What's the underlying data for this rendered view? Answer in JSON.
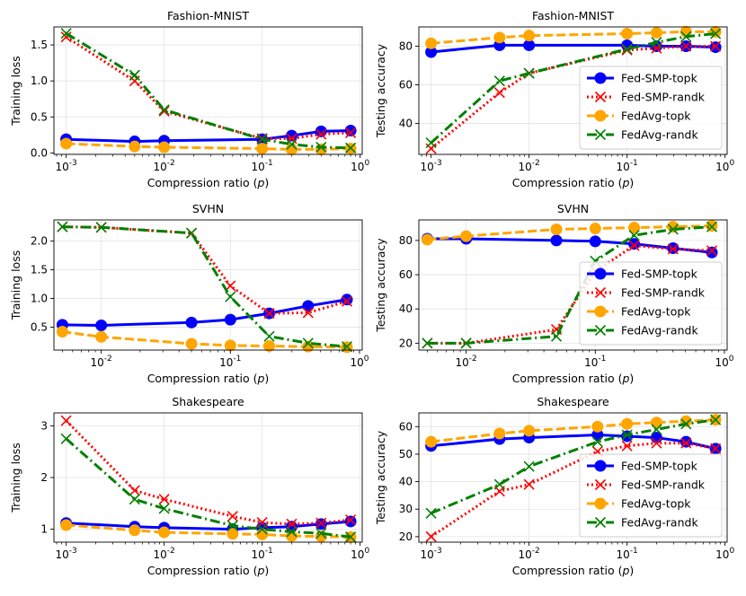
{
  "colors": {
    "fed_smp_topk": "#0000ff",
    "fed_smp_randk": "#ff0000",
    "fedavg_topk": "#ffa500",
    "fedavg_randk": "#008000"
  },
  "legend_labels": [
    "Fed-SMP-topk",
    "Fed-SMP-randk",
    "FedAvg-topk",
    "FedAvg-randk"
  ],
  "chart_data": [
    {
      "id": "fmnist-loss",
      "type": "line",
      "title": "Fashion-MNIST",
      "xlabel": "Compression ratio (p)",
      "ylabel": "Training loss",
      "xscale": "log",
      "xlim": [
        0.00075,
        1.05
      ],
      "ylim": [
        -0.02,
        1.75
      ],
      "yticks": [
        0.0,
        0.5,
        1.0,
        1.5
      ],
      "ytick_labels": [
        "0.0",
        "0.5",
        "1.0",
        "1.5"
      ],
      "xticks": [
        0.001,
        0.01,
        0.1,
        1
      ],
      "xtick_labels": [
        "10^-3",
        "10^-2",
        "10^-1",
        "10^0"
      ],
      "legend": false,
      "series": [
        {
          "name": "Fed-SMP-topk",
          "x": [
            0.001,
            0.005,
            0.01,
            0.1,
            0.2,
            0.4,
            0.8
          ],
          "y": [
            0.19,
            0.16,
            0.17,
            0.19,
            0.24,
            0.3,
            0.31
          ]
        },
        {
          "name": "Fed-SMP-randk",
          "x": [
            0.001,
            0.005,
            0.01,
            0.1,
            0.2,
            0.4,
            0.8
          ],
          "y": [
            1.61,
            1.0,
            0.58,
            0.2,
            0.2,
            0.26,
            0.28
          ]
        },
        {
          "name": "FedAvg-topk",
          "x": [
            0.001,
            0.005,
            0.01,
            0.1,
            0.2,
            0.4,
            0.8
          ],
          "y": [
            0.13,
            0.09,
            0.08,
            0.06,
            0.05,
            0.05,
            0.06
          ]
        },
        {
          "name": "FedAvg-randk",
          "x": [
            0.001,
            0.005,
            0.01,
            0.1,
            0.2,
            0.4,
            0.8
          ],
          "y": [
            1.66,
            1.08,
            0.6,
            0.19,
            0.12,
            0.08,
            0.07
          ]
        }
      ]
    },
    {
      "id": "fmnist-acc",
      "type": "line",
      "title": "Fashion-MNIST",
      "xlabel": "Compression ratio (p)",
      "ylabel": "Testing accuracy",
      "xscale": "log",
      "xlim": [
        0.00075,
        1.05
      ],
      "ylim": [
        24,
        90
      ],
      "yticks": [
        40,
        60,
        80
      ],
      "ytick_labels": [
        "40",
        "60",
        "80"
      ],
      "xticks": [
        0.001,
        0.01,
        0.1,
        1
      ],
      "xtick_labels": [
        "10^-3",
        "10^-2",
        "10^-1",
        "10^0"
      ],
      "legend": true,
      "series": [
        {
          "name": "Fed-SMP-topk",
          "x": [
            0.001,
            0.005,
            0.01,
            0.1,
            0.2,
            0.4,
            0.8
          ],
          "y": [
            77,
            80.5,
            80.5,
            80.5,
            80,
            80,
            79.5
          ]
        },
        {
          "name": "Fed-SMP-randk",
          "x": [
            0.001,
            0.005,
            0.01,
            0.1,
            0.2,
            0.4,
            0.8
          ],
          "y": [
            27,
            56,
            66,
            78,
            79,
            80,
            80
          ]
        },
        {
          "name": "FedAvg-topk",
          "x": [
            0.001,
            0.005,
            0.01,
            0.1,
            0.2,
            0.4,
            0.8
          ],
          "y": [
            81.5,
            84.5,
            85.5,
            86.5,
            87,
            87.5,
            87.5
          ]
        },
        {
          "name": "FedAvg-randk",
          "x": [
            0.001,
            0.005,
            0.01,
            0.1,
            0.2,
            0.4,
            0.8
          ],
          "y": [
            30,
            62,
            66,
            78.5,
            82,
            85,
            86.5
          ]
        }
      ]
    },
    {
      "id": "svhn-loss",
      "type": "line",
      "title": "SVHN",
      "xlabel": "Compression ratio (p)",
      "ylabel": "Training loss",
      "xscale": "log",
      "xlim": [
        0.0043,
        1.05
      ],
      "ylim": [
        0.1,
        2.37
      ],
      "yticks": [
        0.5,
        1.0,
        1.5,
        2.0
      ],
      "ytick_labels": [
        "0.5",
        "1.0",
        "1.5",
        "2.0"
      ],
      "xticks": [
        0.01,
        0.1,
        1
      ],
      "xtick_labels": [
        "10^-2",
        "10^-1",
        "10^0"
      ],
      "legend": false,
      "series": [
        {
          "name": "Fed-SMP-topk",
          "x": [
            0.005,
            0.01,
            0.05,
            0.1,
            0.2,
            0.4,
            0.8
          ],
          "y": [
            0.54,
            0.53,
            0.58,
            0.63,
            0.74,
            0.87,
            0.98
          ]
        },
        {
          "name": "Fed-SMP-randk",
          "x": [
            0.005,
            0.01,
            0.05,
            0.1,
            0.2,
            0.4,
            0.8
          ],
          "y": [
            2.25,
            2.24,
            2.14,
            1.22,
            0.74,
            0.75,
            0.95
          ]
        },
        {
          "name": "FedAvg-topk",
          "x": [
            0.005,
            0.01,
            0.05,
            0.1,
            0.2,
            0.4,
            0.8
          ],
          "y": [
            0.42,
            0.33,
            0.21,
            0.18,
            0.17,
            0.16,
            0.15
          ]
        },
        {
          "name": "FedAvg-randk",
          "x": [
            0.005,
            0.01,
            0.05,
            0.1,
            0.2,
            0.4,
            0.8
          ],
          "y": [
            2.25,
            2.24,
            2.14,
            1.03,
            0.34,
            0.22,
            0.16
          ]
        }
      ]
    },
    {
      "id": "svhn-acc",
      "type": "line",
      "title": "SVHN",
      "xlabel": "Compression ratio (p)",
      "ylabel": "Testing accuracy",
      "xscale": "log",
      "xlim": [
        0.0043,
        1.05
      ],
      "ylim": [
        16,
        92
      ],
      "yticks": [
        20,
        40,
        60,
        80
      ],
      "ytick_labels": [
        "20",
        "40",
        "60",
        "80"
      ],
      "xticks": [
        0.01,
        0.1,
        1
      ],
      "xtick_labels": [
        "10^-2",
        "10^-1",
        "10^0"
      ],
      "legend": true,
      "series": [
        {
          "name": "Fed-SMP-topk",
          "x": [
            0.005,
            0.01,
            0.05,
            0.1,
            0.2,
            0.4,
            0.8
          ],
          "y": [
            81,
            81,
            80,
            79.5,
            78,
            75.5,
            73
          ]
        },
        {
          "name": "Fed-SMP-randk",
          "x": [
            0.005,
            0.01,
            0.05,
            0.1,
            0.2,
            0.4,
            0.8
          ],
          "y": [
            20,
            20,
            28,
            62,
            77,
            75,
            74
          ]
        },
        {
          "name": "FedAvg-topk",
          "x": [
            0.005,
            0.01,
            0.05,
            0.1,
            0.2,
            0.4,
            0.8
          ],
          "y": [
            80.5,
            82.5,
            86.5,
            87,
            87.5,
            88,
            88.5
          ]
        },
        {
          "name": "FedAvg-randk",
          "x": [
            0.005,
            0.01,
            0.05,
            0.1,
            0.2,
            0.4,
            0.8
          ],
          "y": [
            20,
            20,
            24,
            68,
            83,
            86.5,
            88
          ]
        }
      ]
    },
    {
      "id": "shakespeare-loss",
      "type": "line",
      "title": "Shakespeare",
      "xlabel": "Compression ratio (p)",
      "ylabel": "Training loss",
      "xscale": "log",
      "xlim": [
        0.00075,
        1.05
      ],
      "ylim": [
        0.75,
        3.25
      ],
      "yticks": [
        1,
        2,
        3
      ],
      "ytick_labels": [
        "1",
        "2",
        "3"
      ],
      "xticks": [
        0.001,
        0.01,
        0.1,
        1
      ],
      "xtick_labels": [
        "10^-3",
        "10^-2",
        "10^-1",
        "10^0"
      ],
      "legend": false,
      "series": [
        {
          "name": "Fed-SMP-topk",
          "x": [
            0.001,
            0.005,
            0.01,
            0.05,
            0.1,
            0.2,
            0.4,
            0.8
          ],
          "y": [
            1.12,
            1.05,
            1.03,
            1.0,
            1.03,
            1.05,
            1.1,
            1.15
          ]
        },
        {
          "name": "Fed-SMP-randk",
          "x": [
            0.001,
            0.005,
            0.01,
            0.05,
            0.1,
            0.2,
            0.4,
            0.8
          ],
          "y": [
            3.1,
            1.75,
            1.58,
            1.25,
            1.13,
            1.1,
            1.12,
            1.18
          ]
        },
        {
          "name": "FedAvg-topk",
          "x": [
            0.001,
            0.005,
            0.01,
            0.05,
            0.1,
            0.2,
            0.4,
            0.8
          ],
          "y": [
            1.08,
            0.98,
            0.94,
            0.91,
            0.9,
            0.87,
            0.86,
            0.85
          ]
        },
        {
          "name": "FedAvg-randk",
          "x": [
            0.001,
            0.005,
            0.01,
            0.05,
            0.1,
            0.2,
            0.4,
            0.8
          ],
          "y": [
            2.75,
            1.58,
            1.4,
            1.07,
            1.0,
            0.95,
            0.92,
            0.85
          ]
        }
      ]
    },
    {
      "id": "shakespeare-acc",
      "type": "line",
      "title": "Shakespeare",
      "xlabel": "Compression ratio (p)",
      "ylabel": "Testing accuracy",
      "xscale": "log",
      "xlim": [
        0.00075,
        1.05
      ],
      "ylim": [
        18,
        65
      ],
      "yticks": [
        20,
        30,
        40,
        50,
        60
      ],
      "ytick_labels": [
        "20",
        "30",
        "40",
        "50",
        "60"
      ],
      "xticks": [
        0.001,
        0.01,
        0.1,
        1
      ],
      "xtick_labels": [
        "10^-3",
        "10^-2",
        "10^-1",
        "10^0"
      ],
      "legend": true,
      "series": [
        {
          "name": "Fed-SMP-topk",
          "x": [
            0.001,
            0.005,
            0.01,
            0.05,
            0.1,
            0.2,
            0.4,
            0.8
          ],
          "y": [
            53,
            55.5,
            56,
            57,
            56.5,
            56,
            54.5,
            52
          ]
        },
        {
          "name": "Fed-SMP-randk",
          "x": [
            0.001,
            0.005,
            0.01,
            0.05,
            0.1,
            0.2,
            0.4,
            0.8
          ],
          "y": [
            20,
            36.5,
            39,
            51,
            53,
            54,
            54,
            52
          ]
        },
        {
          "name": "FedAvg-topk",
          "x": [
            0.001,
            0.005,
            0.01,
            0.05,
            0.1,
            0.2,
            0.4,
            0.8
          ],
          "y": [
            54.5,
            57.5,
            58.5,
            60,
            61,
            61.5,
            62,
            62.5
          ]
        },
        {
          "name": "FedAvg-randk",
          "x": [
            0.001,
            0.005,
            0.01,
            0.05,
            0.1,
            0.2,
            0.4,
            0.8
          ],
          "y": [
            28.5,
            39,
            45.5,
            54.5,
            57,
            59,
            61,
            62.5
          ]
        }
      ]
    }
  ]
}
